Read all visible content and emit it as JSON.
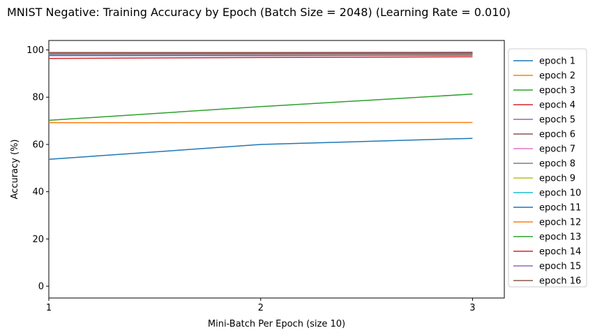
{
  "chart_data": {
    "type": "line",
    "title": "MNIST Negative: Training Accuracy by Epoch (Batch Size = 2048) (Learning Rate = 0.010)",
    "xlabel": "Mini-Batch Per Epoch (size 10)",
    "ylabel": "Accuracy (%)",
    "x": [
      1,
      2,
      3
    ],
    "xticks": [
      "1",
      "2",
      "3"
    ],
    "xlim": [
      1,
      3.15
    ],
    "yticks": [
      "0",
      "20",
      "40",
      "60",
      "80",
      "100"
    ],
    "ylim": [
      -5,
      104
    ],
    "grid": false,
    "legend_position": "outside-right",
    "series": [
      {
        "name": "epoch 1",
        "color": "#1f77b4",
        "values": [
          53.7,
          60.0,
          62.6
        ]
      },
      {
        "name": "epoch 2",
        "color": "#ff7f0e",
        "values": [
          69.2,
          69.2,
          69.3
        ]
      },
      {
        "name": "epoch 3",
        "color": "#2ca02c",
        "values": [
          70.2,
          76.0,
          81.3
        ]
      },
      {
        "name": "epoch 4",
        "color": "#d62728",
        "values": [
          96.4,
          96.8,
          97.1
        ]
      },
      {
        "name": "epoch 5",
        "color": "#9467bd",
        "values": [
          97.6,
          97.6,
          97.7
        ]
      },
      {
        "name": "epoch 6",
        "color": "#8c564b",
        "values": [
          97.8,
          97.9,
          98.0
        ]
      },
      {
        "name": "epoch 7",
        "color": "#e377c2",
        "values": [
          98.0,
          98.1,
          98.2
        ]
      },
      {
        "name": "epoch 8",
        "color": "#7f7f7f",
        "values": [
          98.2,
          98.3,
          98.3
        ]
      },
      {
        "name": "epoch 9",
        "color": "#bcbd22",
        "values": [
          98.3,
          98.4,
          98.4
        ]
      },
      {
        "name": "epoch 10",
        "color": "#17becf",
        "values": [
          98.4,
          98.5,
          98.5
        ]
      },
      {
        "name": "epoch 11",
        "color": "#1f77b4",
        "values": [
          98.5,
          98.6,
          98.6
        ]
      },
      {
        "name": "epoch 12",
        "color": "#ff7f0e",
        "values": [
          98.6,
          98.7,
          98.7
        ]
      },
      {
        "name": "epoch 13",
        "color": "#2ca02c",
        "values": [
          98.7,
          98.7,
          98.8
        ]
      },
      {
        "name": "epoch 14",
        "color": "#d62728",
        "values": [
          98.8,
          98.8,
          98.8
        ]
      },
      {
        "name": "epoch 15",
        "color": "#9467bd",
        "values": [
          98.8,
          98.9,
          98.9
        ]
      },
      {
        "name": "epoch 16",
        "color": "#8c564b",
        "values": [
          98.9,
          98.9,
          99.0
        ]
      }
    ]
  }
}
